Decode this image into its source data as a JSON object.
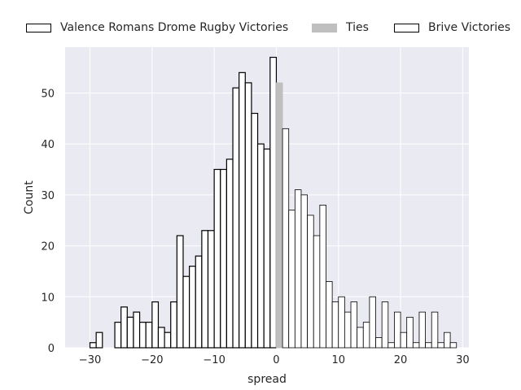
{
  "chart_data": {
    "type": "bar",
    "subtype": "histogram",
    "xlabel": "spread",
    "ylabel": "Count",
    "xlim": [
      -34,
      31
    ],
    "ylim": [
      0,
      59
    ],
    "xticks": [
      -30,
      -20,
      -10,
      0,
      10,
      20,
      30
    ],
    "yticks": [
      0,
      10,
      20,
      30,
      40,
      50
    ],
    "grid": true,
    "legend_placement": "top",
    "series": [
      {
        "name": "Valence Romans Drome Rugby Victories",
        "color": "#ffffff",
        "edge_color": "#000000",
        "bins": [
          {
            "x": -30,
            "y": 1
          },
          {
            "x": -29,
            "y": 3
          },
          {
            "x": -28,
            "y": 0
          },
          {
            "x": -27,
            "y": 0
          },
          {
            "x": -26,
            "y": 5
          },
          {
            "x": -25,
            "y": 8
          },
          {
            "x": -24,
            "y": 6
          },
          {
            "x": -23,
            "y": 7
          },
          {
            "x": -22,
            "y": 5
          },
          {
            "x": -21,
            "y": 5
          },
          {
            "x": -20,
            "y": 9
          },
          {
            "x": -19,
            "y": 4
          },
          {
            "x": -18,
            "y": 3
          },
          {
            "x": -17,
            "y": 9
          },
          {
            "x": -16,
            "y": 22
          },
          {
            "x": -15,
            "y": 14
          },
          {
            "x": -14,
            "y": 16
          },
          {
            "x": -13,
            "y": 18
          },
          {
            "x": -12,
            "y": 23
          },
          {
            "x": -11,
            "y": 23
          },
          {
            "x": -10,
            "y": 35
          },
          {
            "x": -9,
            "y": 35
          },
          {
            "x": -8,
            "y": 37
          },
          {
            "x": -7,
            "y": 51
          },
          {
            "x": -6,
            "y": 54
          },
          {
            "x": -5,
            "y": 52
          },
          {
            "x": -4,
            "y": 46
          },
          {
            "x": -3,
            "y": 40
          },
          {
            "x": -2,
            "y": 39
          },
          {
            "x": -1,
            "y": 57
          }
        ]
      },
      {
        "name": "Ties",
        "color": "#bfbfbf",
        "edge_color": "#bfbfbf",
        "bins": [
          {
            "x": 0,
            "y": 52
          }
        ]
      },
      {
        "name": "Brive Victories",
        "color": "#ffffff",
        "edge_color": "#000000",
        "bins": [
          {
            "x": 1,
            "y": 43
          },
          {
            "x": 2,
            "y": 27
          },
          {
            "x": 3,
            "y": 31
          },
          {
            "x": 4,
            "y": 30
          },
          {
            "x": 5,
            "y": 26
          },
          {
            "x": 6,
            "y": 22
          },
          {
            "x": 7,
            "y": 28
          },
          {
            "x": 8,
            "y": 13
          },
          {
            "x": 9,
            "y": 9
          },
          {
            "x": 10,
            "y": 10
          },
          {
            "x": 11,
            "y": 7
          },
          {
            "x": 12,
            "y": 9
          },
          {
            "x": 13,
            "y": 4
          },
          {
            "x": 14,
            "y": 5
          },
          {
            "x": 15,
            "y": 10
          },
          {
            "x": 16,
            "y": 2
          },
          {
            "x": 17,
            "y": 9
          },
          {
            "x": 18,
            "y": 1
          },
          {
            "x": 19,
            "y": 7
          },
          {
            "x": 20,
            "y": 3
          },
          {
            "x": 21,
            "y": 6
          },
          {
            "x": 22,
            "y": 1
          },
          {
            "x": 23,
            "y": 7
          },
          {
            "x": 24,
            "y": 1
          },
          {
            "x": 25,
            "y": 7
          },
          {
            "x": 26,
            "y": 1
          },
          {
            "x": 27,
            "y": 3
          },
          {
            "x": 28,
            "y": 1
          }
        ]
      }
    ]
  },
  "colors": {
    "plot_background": "#eaeaf2",
    "grid": "#ffffff"
  }
}
